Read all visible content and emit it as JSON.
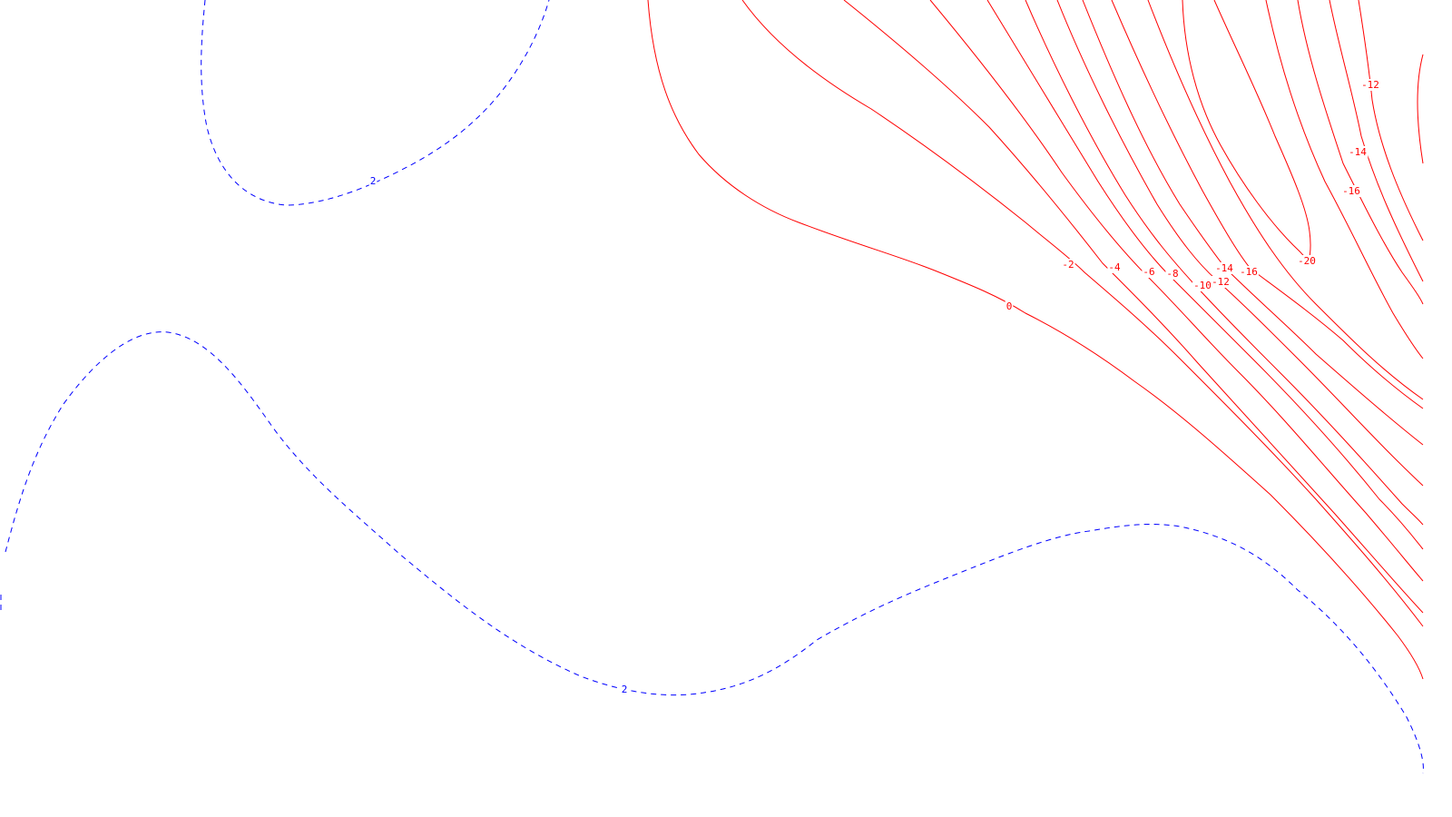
{
  "chart_data": {
    "type": "contour",
    "title": "",
    "xlabel": "",
    "ylabel": "",
    "colors": {
      "positive": "#0000ff",
      "negative": "#ff0000"
    },
    "line_styles": {
      "positive": "dashed",
      "negative": "solid"
    },
    "levels": [
      {
        "value": 2,
        "label": "2"
      },
      {
        "value": 0,
        "label": "0"
      },
      {
        "value": -2,
        "label": "-2"
      },
      {
        "value": -4,
        "label": "-4"
      },
      {
        "value": -6,
        "label": "-6"
      },
      {
        "value": -8,
        "label": "-8"
      },
      {
        "value": -10,
        "label": "-10"
      },
      {
        "value": -12,
        "label": "-12"
      },
      {
        "value": -14,
        "label": "-14"
      },
      {
        "value": -16,
        "label": "-16"
      },
      {
        "value": -20,
        "label": "-20"
      }
    ]
  }
}
